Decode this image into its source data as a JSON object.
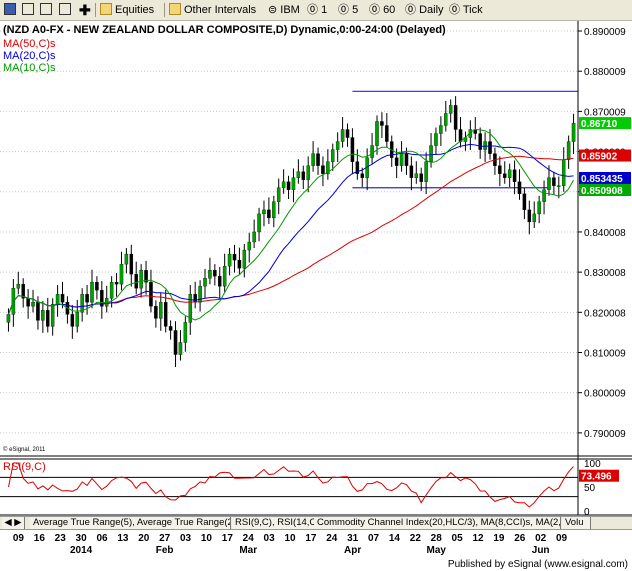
{
  "toolbar": {
    "equities_label": "Equities",
    "other_intervals_label": "Other Intervals",
    "ibm_label": "IBM",
    "i1_label": "1",
    "i5_label": "5",
    "i60_label": "60",
    "daily_label": "Daily",
    "tick_label": "Tick"
  },
  "chart": {
    "title": "(NZD A0-FX - NEW ZEALAND DOLLAR COMPOSITE,D) Dynamic,0:00-24:00 (Delayed)",
    "legend": [
      {
        "label": "MA(50,C)s",
        "color": "#dd0000"
      },
      {
        "label": "MA(20,C)s",
        "color": "#0000dd"
      },
      {
        "label": "MA(10,C)s",
        "color": "#009900"
      }
    ],
    "copyright": "© eSignal, 2011",
    "price_tags": [
      {
        "value": "0.86710",
        "bg": "#00cc00",
        "fg": "#ffffff"
      },
      {
        "value": "0.85902",
        "bg": "#dd0000",
        "fg": "#ffffff"
      },
      {
        "value": "0.853435",
        "bg": "#0000cc",
        "fg": "#ffffff"
      },
      {
        "value": "0.850908",
        "bg": "#00aa00",
        "fg": "#ffffff"
      }
    ],
    "rsi_title": "RSI(9,C)",
    "rsi_tag": "73.496",
    "tabs": [
      "Average True Range(5), Average True Range(20)",
      "RSI(9,C), RSI(14,C)",
      "Commodity Channel Index(20,HLC/3), MA(8,CCI)s, MA(2,CCI)s",
      "Volu"
    ],
    "day_labels": [
      "09",
      "16",
      "23",
      "30",
      "06",
      "13",
      "20",
      "27",
      "03",
      "10",
      "17",
      "24",
      "03",
      "10",
      "17",
      "24",
      "31",
      "07",
      "14",
      "22",
      "28",
      "05",
      "12",
      "19",
      "26",
      "02",
      "09"
    ],
    "month_labels": [
      "2014",
      "Feb",
      "Mar",
      "Apr",
      "May",
      "Jun"
    ],
    "footer": "Published by eSignal (www.esignal.com)"
  },
  "chart_data": {
    "type": "candlestick",
    "price_ylim": [
      0.785,
      0.8925
    ],
    "price_ticks": [
      "0.890009",
      "0.880009",
      "0.870009",
      "0.860009",
      "0.850009",
      "0.840008",
      "0.830008",
      "0.820008",
      "0.810009",
      "0.800009",
      "0.790009"
    ],
    "rsi_ylim": [
      0,
      100
    ],
    "rsi_ticks": [
      "100",
      "50",
      "0"
    ],
    "rsi_levels": [
      70,
      30
    ],
    "closes": [
      0.8195,
      0.826,
      0.827,
      0.8235,
      0.8215,
      0.8225,
      0.818,
      0.8205,
      0.8165,
      0.822,
      0.8245,
      0.8225,
      0.8195,
      0.8165,
      0.82,
      0.8245,
      0.8225,
      0.8275,
      0.8255,
      0.8215,
      0.8235,
      0.8275,
      0.827,
      0.832,
      0.8345,
      0.8295,
      0.826,
      0.8305,
      0.8275,
      0.8215,
      0.8185,
      0.8225,
      0.8165,
      0.8155,
      0.8095,
      0.8125,
      0.8175,
      0.8245,
      0.8225,
      0.8265,
      0.8285,
      0.8305,
      0.829,
      0.8265,
      0.8315,
      0.8345,
      0.833,
      0.831,
      0.8355,
      0.8375,
      0.84,
      0.8445,
      0.8455,
      0.8435,
      0.8475,
      0.851,
      0.8525,
      0.8505,
      0.8535,
      0.855,
      0.853,
      0.8565,
      0.8595,
      0.8565,
      0.8545,
      0.8575,
      0.8605,
      0.8625,
      0.8655,
      0.8635,
      0.8575,
      0.8545,
      0.8535,
      0.8585,
      0.8615,
      0.8675,
      0.8665,
      0.8625,
      0.8585,
      0.8565,
      0.8595,
      0.8565,
      0.8535,
      0.8545,
      0.8525,
      0.8575,
      0.8615,
      0.8645,
      0.8665,
      0.8695,
      0.8715,
      0.8655,
      0.8625,
      0.8635,
      0.8655,
      0.8645,
      0.8605,
      0.8625,
      0.8595,
      0.8565,
      0.8545,
      0.8535,
      0.8555,
      0.8525,
      0.8495,
      0.8455,
      0.8425,
      0.8445,
      0.8475,
      0.8505,
      0.8535,
      0.8515,
      0.8515,
      0.858,
      0.8625,
      0.8671
    ],
    "ma_windows": [
      50,
      20,
      10
    ],
    "resistance_level": 0.875,
    "support_level": 0.851
  }
}
